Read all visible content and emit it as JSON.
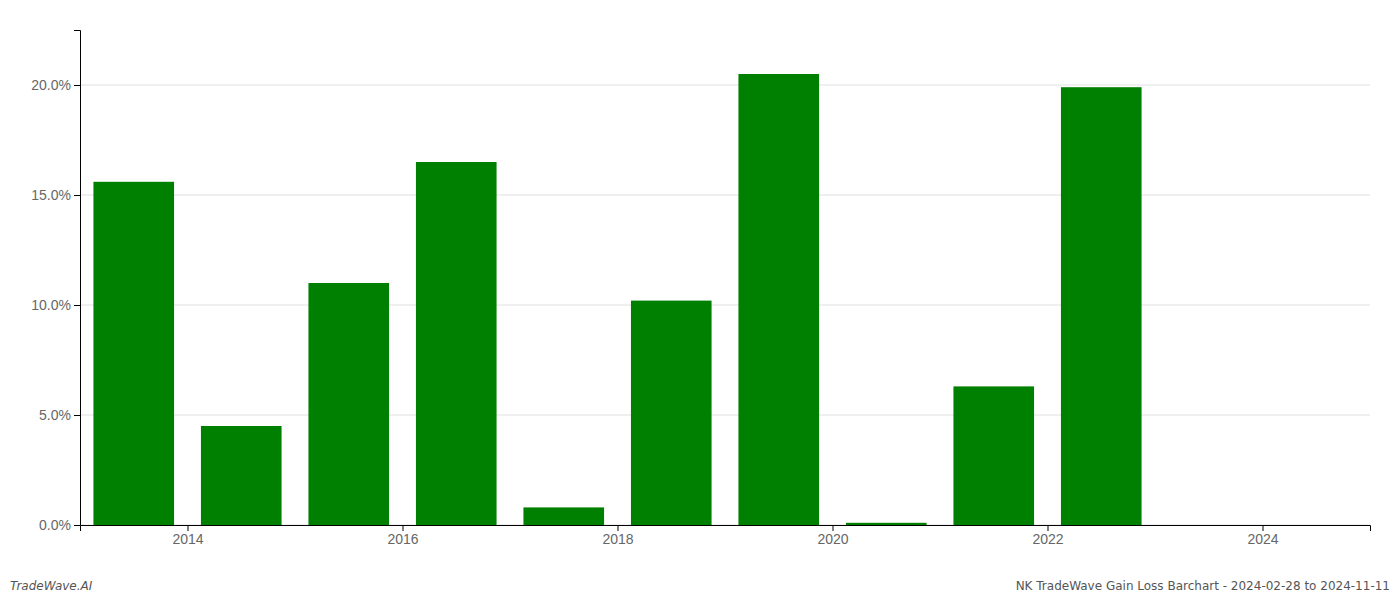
{
  "chart_data": {
    "type": "bar",
    "x": [
      2013.5,
      2014.5,
      2015.5,
      2016.5,
      2017.5,
      2018.5,
      2019.5,
      2020.5,
      2021.5,
      2022.5
    ],
    "values": [
      0.156,
      0.045,
      0.11,
      0.165,
      0.008,
      0.102,
      0.205,
      0.001,
      0.063,
      0.199
    ],
    "color": "#008000",
    "xlim": [
      2013.0,
      2025.0
    ],
    "xticks": [
      2014,
      2016,
      2018,
      2020,
      2022,
      2024
    ],
    "ylim": [
      0,
      0.225
    ],
    "yticks": [
      {
        "value": 0.0,
        "label": "0.0%"
      },
      {
        "value": 0.05,
        "label": "5.0%"
      },
      {
        "value": 0.1,
        "label": "10.0%"
      },
      {
        "value": 0.15,
        "label": "15.0%"
      },
      {
        "value": 0.2,
        "label": "20.0%"
      }
    ],
    "grid": true,
    "annotations": [
      "TradeWave.AI",
      "NK TradeWave Gain Loss Barchart - 2024-02-28 to 2024-11-11"
    ]
  }
}
